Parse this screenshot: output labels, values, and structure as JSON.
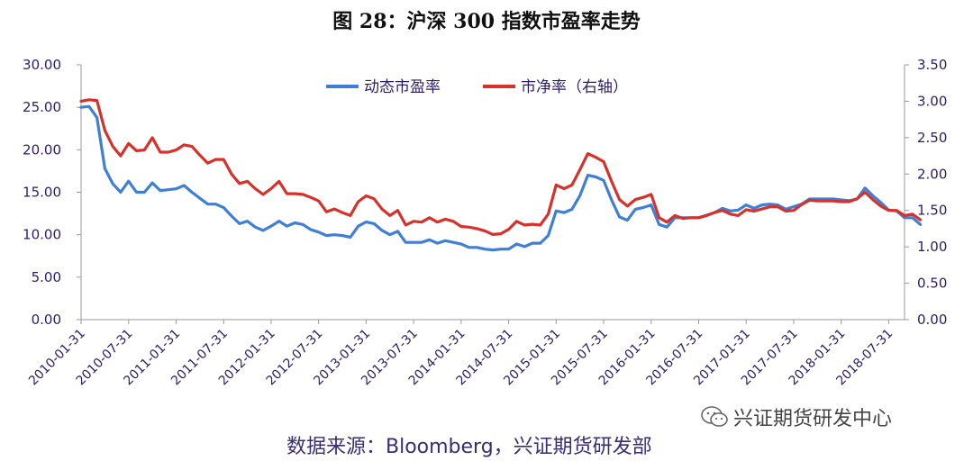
{
  "title": "图 28：沪深 300 指数市盈率走势",
  "source": "数据来源：Bloomberg，兴证期货研发部",
  "watermark": "兴证期货研发中心",
  "chart_data": {
    "type": "line",
    "title": "图 28：沪深 300 指数市盈率走势",
    "legend_position": "top-center",
    "grid": false,
    "y_left": {
      "ticks": [
        "0.00",
        "5.00",
        "10.00",
        "15.00",
        "20.00",
        "25.00",
        "30.00"
      ],
      "ylim": [
        0,
        30
      ]
    },
    "y_right": {
      "ticks": [
        "0.00",
        "0.50",
        "1.00",
        "1.50",
        "2.00",
        "2.50",
        "3.00",
        "3.50"
      ],
      "ylim": [
        0,
        3.5
      ]
    },
    "x_ticks": [
      "2010-01-31",
      "2010-07-31",
      "2011-01-31",
      "2011-07-31",
      "2012-01-31",
      "2012-07-31",
      "2013-01-31",
      "2013-07-31",
      "2014-01-31",
      "2014-07-31",
      "2015-01-31",
      "2015-07-31",
      "2016-01-31",
      "2016-07-31",
      "2017-01-31",
      "2017-07-31",
      "2018-01-31",
      "2018-07-31"
    ],
    "x_start": "2010-01",
    "x_end": "2018-09",
    "colors": {
      "pe": "#3f7fd4",
      "pb": "#d7312b",
      "text": "#2e1d66"
    },
    "series": [
      {
        "name": "动态市盈率",
        "axis": "left",
        "values": [
          25.0,
          25.1,
          23.8,
          17.8,
          16.0,
          15.0,
          16.3,
          15.0,
          15.0,
          16.1,
          15.2,
          15.3,
          15.4,
          15.8,
          15.0,
          14.3,
          13.6,
          13.6,
          13.2,
          12.2,
          11.3,
          11.6,
          10.9,
          10.5,
          11.0,
          11.6,
          11.0,
          11.4,
          11.2,
          10.6,
          10.3,
          9.9,
          10.0,
          9.9,
          9.7,
          11.0,
          11.5,
          11.3,
          10.5,
          10.0,
          10.4,
          9.1,
          9.1,
          9.1,
          9.4,
          9.0,
          9.3,
          9.1,
          8.9,
          8.5,
          8.5,
          8.3,
          8.2,
          8.3,
          8.3,
          8.9,
          8.6,
          9.0,
          9.0,
          9.9,
          12.8,
          12.6,
          13.0,
          14.6,
          17.0,
          16.8,
          16.4,
          14.1,
          12.1,
          11.7,
          13.0,
          13.2,
          13.5,
          11.2,
          10.9,
          12.0,
          12.0,
          12.0,
          12.0,
          12.3,
          12.6,
          13.1,
          12.8,
          12.9,
          13.5,
          13.1,
          13.5,
          13.6,
          13.5,
          13.0,
          13.3,
          13.6,
          14.2,
          14.2,
          14.2,
          14.2,
          14.1,
          14.0,
          14.2,
          15.5,
          14.6,
          13.8,
          12.9,
          12.8,
          12.0,
          12.0,
          11.2
        ]
      },
      {
        "name": "市净率（右轴）",
        "axis": "right",
        "values": [
          3.0,
          3.02,
          3.01,
          2.6,
          2.38,
          2.25,
          2.42,
          2.32,
          2.33,
          2.5,
          2.3,
          2.3,
          2.33,
          2.4,
          2.38,
          2.26,
          2.15,
          2.2,
          2.2,
          2.0,
          1.87,
          1.9,
          1.8,
          1.72,
          1.8,
          1.9,
          1.73,
          1.73,
          1.72,
          1.68,
          1.63,
          1.48,
          1.52,
          1.47,
          1.43,
          1.62,
          1.7,
          1.66,
          1.52,
          1.43,
          1.5,
          1.3,
          1.35,
          1.34,
          1.4,
          1.34,
          1.38,
          1.35,
          1.28,
          1.27,
          1.25,
          1.22,
          1.17,
          1.18,
          1.24,
          1.35,
          1.3,
          1.31,
          1.3,
          1.45,
          1.85,
          1.8,
          1.85,
          2.06,
          2.28,
          2.23,
          2.17,
          1.9,
          1.65,
          1.56,
          1.65,
          1.68,
          1.72,
          1.4,
          1.34,
          1.43,
          1.39,
          1.4,
          1.4,
          1.43,
          1.47,
          1.5,
          1.45,
          1.43,
          1.51,
          1.49,
          1.52,
          1.55,
          1.55,
          1.49,
          1.5,
          1.58,
          1.64,
          1.63,
          1.63,
          1.63,
          1.62,
          1.62,
          1.66,
          1.75,
          1.65,
          1.56,
          1.5,
          1.5,
          1.43,
          1.45,
          1.37
        ]
      }
    ]
  }
}
